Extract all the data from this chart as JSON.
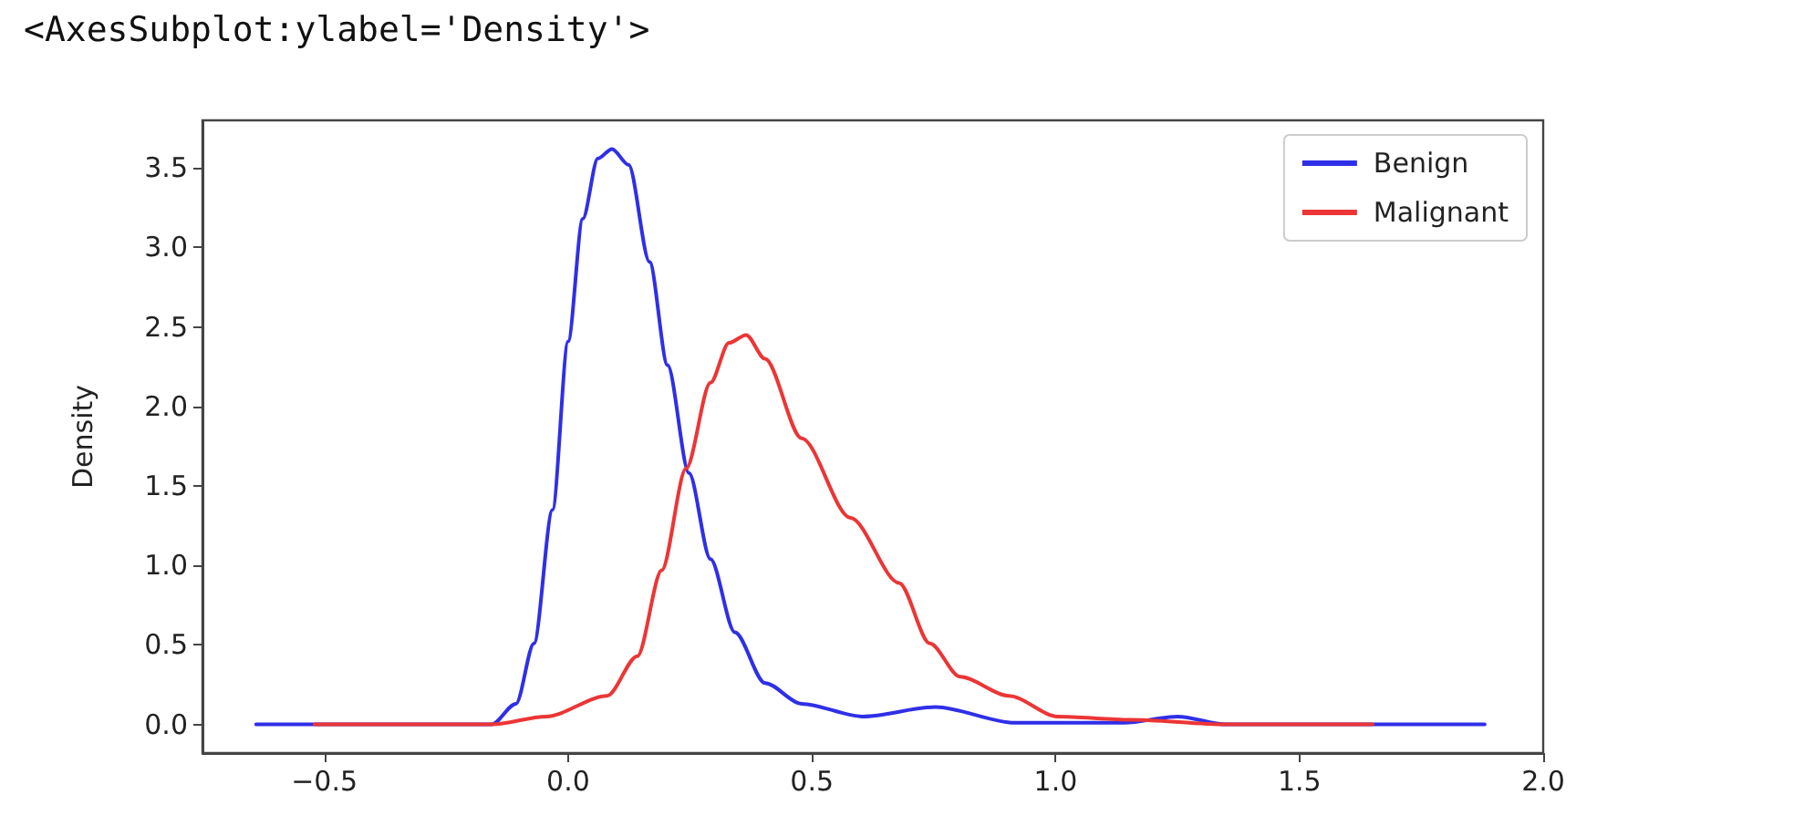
{
  "chart_data": {
    "type": "line",
    "title": "<AxesSubplot:ylabel='Density'>",
    "ylabel": "Density",
    "xlim": [
      -0.75,
      2.0
    ],
    "ylim": [
      -0.18,
      3.8
    ],
    "xticks": [
      {
        "value": -0.5,
        "label": "−0.5"
      },
      {
        "value": 0,
        "label": "0.0"
      },
      {
        "value": 0.5,
        "label": "0.5"
      },
      {
        "value": 1,
        "label": "1.0"
      },
      {
        "value": 1.5,
        "label": "1.5"
      },
      {
        "value": 2,
        "label": "2.0"
      }
    ],
    "yticks": [
      {
        "value": 0,
        "label": "0.0"
      },
      {
        "value": 0.5,
        "label": "0.5"
      },
      {
        "value": 1,
        "label": "1.0"
      },
      {
        "value": 1.5,
        "label": "1.5"
      },
      {
        "value": 2,
        "label": "2.0"
      },
      {
        "value": 2.5,
        "label": "2.5"
      },
      {
        "value": 3,
        "label": "3.0"
      },
      {
        "value": 3.5,
        "label": "3.5"
      }
    ],
    "grid": false,
    "legend": "top right",
    "marker": "none",
    "line_style": "solid",
    "series": [
      {
        "name": "Benign",
        "color": "#2f2fe8",
        "x": [
          -0.64,
          -0.157,
          -0.107,
          -0.07,
          -0.032,
          0.0,
          0.03,
          0.061,
          0.09,
          0.124,
          0.167,
          0.204,
          0.248,
          0.292,
          0.342,
          0.404,
          0.479,
          0.604,
          0.754,
          0.916,
          1.14,
          1.25,
          1.35,
          1.88
        ],
        "values": [
          0,
          0,
          0.13,
          0.51,
          1.35,
          2.41,
          3.18,
          3.56,
          3.62,
          3.52,
          2.91,
          2.26,
          1.58,
          1.04,
          0.58,
          0.26,
          0.13,
          0.05,
          0.11,
          0.01,
          0.01,
          0.05,
          0,
          0
        ]
      },
      {
        "name": "Malignant",
        "color": "#ec3535",
        "x": [
          -0.52,
          -0.157,
          -0.045,
          0.08,
          0.142,
          0.192,
          0.242,
          0.292,
          0.33,
          0.365,
          0.404,
          0.479,
          0.579,
          0.679,
          0.742,
          0.804,
          0.904,
          1.004,
          1.154,
          1.35,
          1.65
        ],
        "values": [
          0,
          0,
          0.05,
          0.18,
          0.43,
          0.97,
          1.61,
          2.15,
          2.4,
          2.45,
          2.3,
          1.8,
          1.3,
          0.89,
          0.51,
          0.3,
          0.18,
          0.05,
          0.03,
          0,
          0
        ]
      }
    ]
  }
}
